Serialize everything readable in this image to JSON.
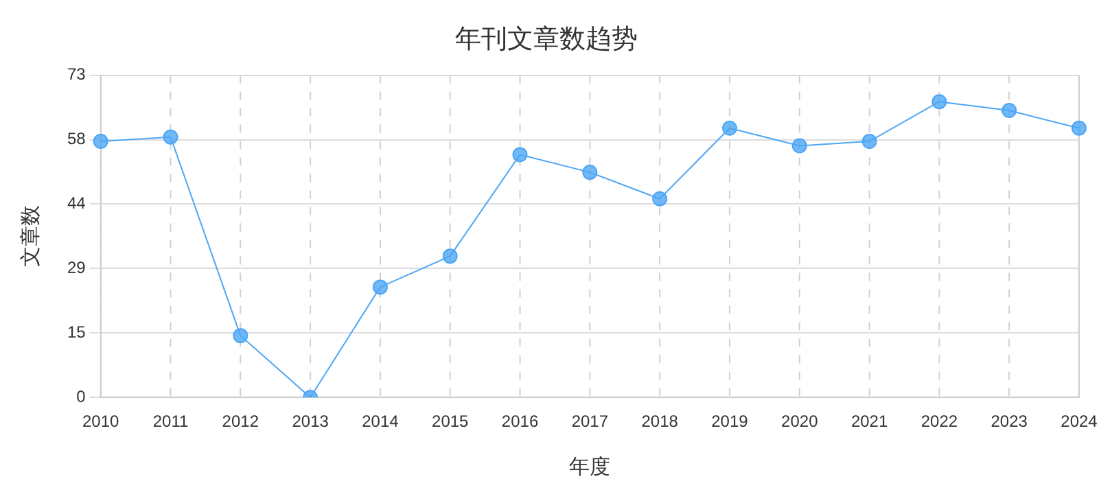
{
  "chart_data": {
    "type": "line",
    "title": "年刊文章数趋势",
    "xlabel": "年度",
    "ylabel": "文章数",
    "categories": [
      "2010",
      "2011",
      "2012",
      "2013",
      "2014",
      "2015",
      "2016",
      "2017",
      "2018",
      "2019",
      "2020",
      "2021",
      "2022",
      "2023",
      "2024"
    ],
    "series": [
      {
        "color": "#4da6f5",
        "values": [
          58,
          59,
          14,
          0,
          25,
          32,
          55,
          51,
          45,
          61,
          57,
          58,
          67,
          65,
          61
        ]
      }
    ],
    "ylim": [
      0,
      73
    ],
    "yticks": [
      0,
      {
        "value": 14.6,
        "label": "15"
      },
      {
        "value": 29.2,
        "label": "29"
      },
      {
        "value": 43.8,
        "label": "44"
      },
      {
        "value": 58.4,
        "label": "58"
      },
      73
    ],
    "grid": true,
    "legend": false,
    "marker": "circle",
    "line_style": "solid"
  }
}
